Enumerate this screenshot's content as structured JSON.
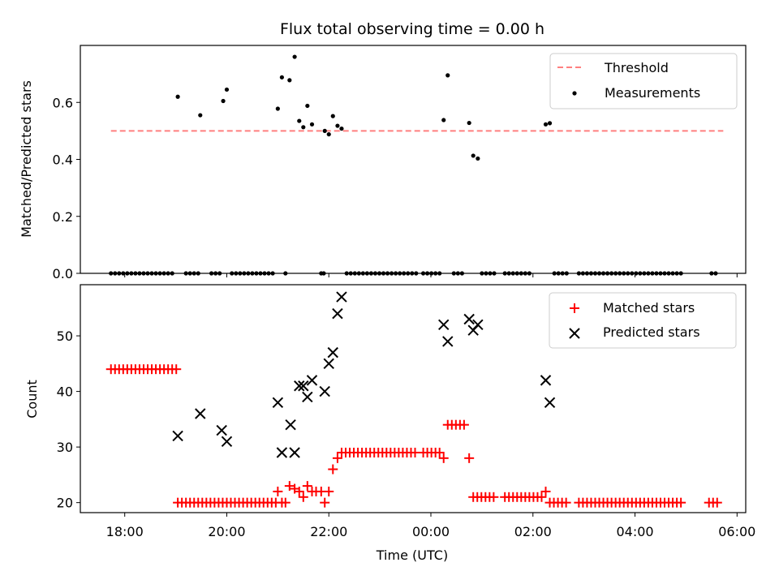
{
  "chart_data": [
    {
      "type": "scatter",
      "title": "Flux total observing time = 0.00 h",
      "xlabel": "",
      "ylabel": "Matched/Predicted stars",
      "ylim": [
        0,
        0.8
      ],
      "yticks": [
        "0.0",
        "0.2",
        "0.4",
        "0.6"
      ],
      "ytick_values": [
        0,
        0.2,
        0.4,
        0.6
      ],
      "x_axis": "time (hours since 18:00 UTC, shared)",
      "legend": {
        "position": "top-right",
        "entries": [
          "Threshold",
          "Measurements"
        ]
      },
      "threshold": {
        "name": "Threshold",
        "value": 0.5,
        "x_range": [
          -0.27,
          11.73
        ],
        "color": "#ff7f7f"
      },
      "measurements": {
        "name": "Measurements",
        "color": "#000000",
        "points": [
          [
            1.04,
            0.62
          ],
          [
            1.48,
            0.555
          ],
          [
            1.93,
            0.605
          ],
          [
            2.0,
            0.645
          ],
          [
            3.0,
            0.578
          ],
          [
            3.08,
            0.688
          ],
          [
            3.23,
            0.678
          ],
          [
            3.33,
            0.76
          ],
          [
            3.42,
            0.535
          ],
          [
            3.5,
            0.513
          ],
          [
            3.58,
            0.588
          ],
          [
            3.67,
            0.523
          ],
          [
            3.92,
            0.5
          ],
          [
            4.0,
            0.488
          ],
          [
            4.08,
            0.552
          ],
          [
            4.17,
            0.518
          ],
          [
            4.25,
            0.508
          ],
          [
            6.25,
            0.538
          ],
          [
            6.33,
            0.695
          ],
          [
            6.75,
            0.528
          ],
          [
            6.83,
            0.413
          ],
          [
            6.92,
            0.403
          ],
          [
            8.25,
            0.523
          ],
          [
            8.33,
            0.527
          ]
        ],
        "zeros_x": [
          -0.27,
          -0.19,
          -0.11,
          -0.03,
          0.05,
          0.13,
          0.21,
          0.29,
          0.37,
          0.45,
          0.53,
          0.61,
          0.69,
          0.77,
          0.85,
          0.93,
          1.2,
          1.28,
          1.36,
          1.44,
          1.7,
          1.78,
          1.86,
          2.1,
          2.18,
          2.26,
          2.34,
          2.42,
          2.5,
          2.58,
          2.66,
          2.74,
          2.82,
          2.9,
          3.15,
          3.85,
          3.9,
          4.35,
          4.43,
          4.51,
          4.59,
          4.67,
          4.75,
          4.83,
          4.91,
          4.99,
          5.07,
          5.15,
          5.23,
          5.31,
          5.39,
          5.47,
          5.55,
          5.63,
          5.71,
          5.85,
          5.93,
          6.01,
          6.09,
          6.17,
          6.45,
          6.53,
          6.61,
          7.0,
          7.08,
          7.16,
          7.24,
          7.45,
          7.53,
          7.61,
          7.69,
          7.77,
          7.85,
          7.93,
          8.42,
          8.5,
          8.58,
          8.66,
          8.9,
          8.98,
          9.06,
          9.14,
          9.22,
          9.3,
          9.38,
          9.46,
          9.54,
          9.62,
          9.7,
          9.78,
          9.86,
          9.94,
          10.02,
          10.1,
          10.18,
          10.26,
          10.34,
          10.42,
          10.5,
          10.58,
          10.66,
          10.74,
          10.82,
          10.9,
          11.5,
          11.58
        ]
      }
    },
    {
      "type": "scatter",
      "title": "",
      "xlabel": "Time (UTC)",
      "ylabel": "Count",
      "ylim": [
        18.2,
        59.2
      ],
      "yticks": [
        "20",
        "30",
        "40",
        "50"
      ],
      "ytick_values": [
        20,
        30,
        40,
        50
      ],
      "xlim": [
        -0.87,
        12.17
      ],
      "xticks": [
        "18:00",
        "20:00",
        "22:00",
        "00:00",
        "02:00",
        "04:00",
        "06:00"
      ],
      "xtick_values": [
        0,
        2,
        4,
        6,
        8,
        10,
        12
      ],
      "legend": {
        "position": "top-right",
        "entries": [
          "Matched stars",
          "Predicted stars"
        ]
      },
      "matched": {
        "name": "Matched stars",
        "color": "#ff0000",
        "points": [
          [
            -0.27,
            44
          ],
          [
            -0.19,
            44
          ],
          [
            -0.11,
            44
          ],
          [
            -0.03,
            44
          ],
          [
            0.05,
            44
          ],
          [
            0.13,
            44
          ],
          [
            0.21,
            44
          ],
          [
            0.29,
            44
          ],
          [
            0.37,
            44
          ],
          [
            0.45,
            44
          ],
          [
            0.53,
            44
          ],
          [
            0.61,
            44
          ],
          [
            0.69,
            44
          ],
          [
            0.77,
            44
          ],
          [
            0.85,
            44
          ],
          [
            0.93,
            44
          ],
          [
            1.01,
            44
          ],
          [
            1.04,
            20
          ],
          [
            1.12,
            20
          ],
          [
            1.2,
            20
          ],
          [
            1.28,
            20
          ],
          [
            1.36,
            20
          ],
          [
            1.44,
            20
          ],
          [
            1.52,
            20
          ],
          [
            1.6,
            20
          ],
          [
            1.68,
            20
          ],
          [
            1.76,
            20
          ],
          [
            1.84,
            20
          ],
          [
            1.92,
            20
          ],
          [
            2.0,
            20
          ],
          [
            2.08,
            20
          ],
          [
            2.16,
            20
          ],
          [
            2.24,
            20
          ],
          [
            2.32,
            20
          ],
          [
            2.4,
            20
          ],
          [
            2.48,
            20
          ],
          [
            2.56,
            20
          ],
          [
            2.64,
            20
          ],
          [
            2.72,
            20
          ],
          [
            2.8,
            20
          ],
          [
            2.88,
            20
          ],
          [
            2.96,
            20
          ],
          [
            3.0,
            22
          ],
          [
            3.08,
            20
          ],
          [
            3.15,
            20
          ],
          [
            3.23,
            23
          ],
          [
            3.33,
            22.5
          ],
          [
            3.42,
            22
          ],
          [
            3.5,
            21
          ],
          [
            3.58,
            23
          ],
          [
            3.67,
            22
          ],
          [
            3.75,
            22
          ],
          [
            3.85,
            22
          ],
          [
            3.92,
            20
          ],
          [
            4.0,
            22
          ],
          [
            4.08,
            26
          ],
          [
            4.17,
            28
          ],
          [
            4.25,
            29
          ],
          [
            4.33,
            29
          ],
          [
            4.41,
            29
          ],
          [
            4.49,
            29
          ],
          [
            4.57,
            29
          ],
          [
            4.65,
            29
          ],
          [
            4.73,
            29
          ],
          [
            4.81,
            29
          ],
          [
            4.89,
            29
          ],
          [
            4.97,
            29
          ],
          [
            5.05,
            29
          ],
          [
            5.13,
            29
          ],
          [
            5.21,
            29
          ],
          [
            5.29,
            29
          ],
          [
            5.37,
            29
          ],
          [
            5.45,
            29
          ],
          [
            5.53,
            29
          ],
          [
            5.61,
            29
          ],
          [
            5.69,
            29
          ],
          [
            5.85,
            29
          ],
          [
            5.93,
            29
          ],
          [
            6.01,
            29
          ],
          [
            6.09,
            29
          ],
          [
            6.17,
            29
          ],
          [
            6.25,
            28
          ],
          [
            6.33,
            34
          ],
          [
            6.41,
            34
          ],
          [
            6.49,
            34
          ],
          [
            6.57,
            34
          ],
          [
            6.65,
            34
          ],
          [
            6.75,
            28
          ],
          [
            6.83,
            21
          ],
          [
            6.91,
            21
          ],
          [
            6.99,
            21
          ],
          [
            7.07,
            21
          ],
          [
            7.15,
            21
          ],
          [
            7.23,
            21
          ],
          [
            7.45,
            21
          ],
          [
            7.53,
            21
          ],
          [
            7.61,
            21
          ],
          [
            7.69,
            21
          ],
          [
            7.77,
            21
          ],
          [
            7.85,
            21
          ],
          [
            7.93,
            21
          ],
          [
            8.01,
            21
          ],
          [
            8.09,
            21
          ],
          [
            8.17,
            21
          ],
          [
            8.25,
            22
          ],
          [
            8.33,
            20
          ],
          [
            8.41,
            20
          ],
          [
            8.49,
            20
          ],
          [
            8.57,
            20
          ],
          [
            8.65,
            20
          ],
          [
            8.9,
            20
          ],
          [
            8.98,
            20
          ],
          [
            9.06,
            20
          ],
          [
            9.14,
            20
          ],
          [
            9.22,
            20
          ],
          [
            9.3,
            20
          ],
          [
            9.38,
            20
          ],
          [
            9.46,
            20
          ],
          [
            9.54,
            20
          ],
          [
            9.62,
            20
          ],
          [
            9.7,
            20
          ],
          [
            9.78,
            20
          ],
          [
            9.86,
            20
          ],
          [
            9.94,
            20
          ],
          [
            10.02,
            20
          ],
          [
            10.1,
            20
          ],
          [
            10.18,
            20
          ],
          [
            10.26,
            20
          ],
          [
            10.34,
            20
          ],
          [
            10.42,
            20
          ],
          [
            10.5,
            20
          ],
          [
            10.58,
            20
          ],
          [
            10.66,
            20
          ],
          [
            10.74,
            20
          ],
          [
            10.82,
            20
          ],
          [
            10.9,
            20
          ],
          [
            11.45,
            20
          ],
          [
            11.53,
            20
          ],
          [
            11.61,
            20
          ]
        ]
      },
      "predicted": {
        "name": "Predicted stars",
        "color": "#000000",
        "points": [
          [
            1.04,
            32
          ],
          [
            1.48,
            36
          ],
          [
            1.9,
            33
          ],
          [
            2.0,
            31
          ],
          [
            3.0,
            38
          ],
          [
            3.08,
            29
          ],
          [
            3.25,
            34
          ],
          [
            3.33,
            29
          ],
          [
            3.42,
            41
          ],
          [
            3.5,
            41
          ],
          [
            3.58,
            39
          ],
          [
            3.67,
            42
          ],
          [
            3.92,
            40
          ],
          [
            4.0,
            45
          ],
          [
            4.08,
            47
          ],
          [
            4.17,
            54
          ],
          [
            4.25,
            57
          ],
          [
            6.25,
            52
          ],
          [
            6.33,
            49
          ],
          [
            6.75,
            53
          ],
          [
            6.83,
            51
          ],
          [
            6.92,
            52
          ],
          [
            8.25,
            42
          ],
          [
            8.33,
            38
          ]
        ]
      }
    }
  ]
}
